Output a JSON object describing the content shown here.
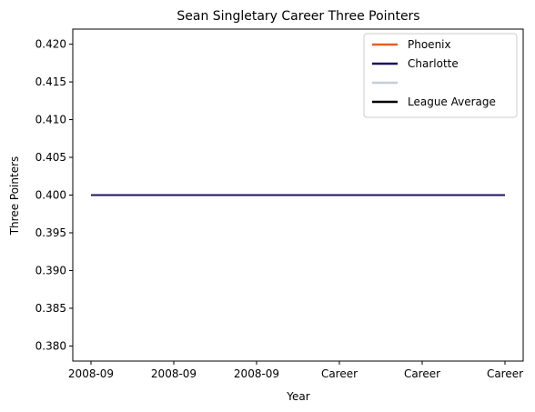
{
  "chart_data": {
    "type": "line",
    "title": "Sean Singletary Career Three Pointers",
    "xlabel": "Year",
    "ylabel": "Three Pointers",
    "x_categories": [
      "2008-09",
      "2008-09",
      "2008-09",
      "Career",
      "Career",
      "Career"
    ],
    "ylim": [
      0.378,
      0.422
    ],
    "y_ticks": [
      0.38,
      0.385,
      0.39,
      0.395,
      0.4,
      0.405,
      0.41,
      0.415,
      0.42
    ],
    "y_tick_labels": [
      "0.380",
      "0.385",
      "0.390",
      "0.395",
      "0.400",
      "0.405",
      "0.410",
      "0.415",
      "0.420"
    ],
    "grid": false,
    "legend_position": "top-right",
    "series": [
      {
        "name": "Phoenix",
        "color": "#E56020",
        "values": [
          0.4,
          0.4,
          0.4,
          0.4,
          0.4,
          0.4
        ]
      },
      {
        "name": "Charlotte",
        "color": "#1D1160",
        "values": [
          0.4,
          0.4,
          0.4,
          0.4,
          0.4,
          0.4
        ]
      },
      {
        "name": "",
        "color": "#C4CED4",
        "values": []
      },
      {
        "name": "League Average",
        "color": "#000000",
        "values": []
      }
    ]
  }
}
